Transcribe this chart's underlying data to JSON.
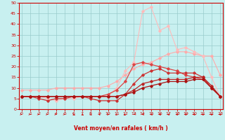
{
  "x": [
    0,
    1,
    2,
    3,
    4,
    5,
    6,
    7,
    8,
    9,
    10,
    11,
    12,
    13,
    14,
    15,
    16,
    17,
    18,
    19,
    20,
    21,
    22,
    23
  ],
  "lines": [
    {
      "y": [
        9,
        9,
        9,
        9,
        10,
        10,
        10,
        10,
        10,
        10,
        11,
        13,
        16,
        19,
        21,
        22,
        24,
        26,
        27,
        27,
        26,
        25,
        25,
        16
      ],
      "color": "#ffaaaa",
      "lw": 0.8,
      "marker": "D",
      "ms": 1.8
    },
    {
      "y": [
        6,
        6,
        6,
        5,
        4,
        5,
        5,
        6,
        6,
        6,
        6,
        10,
        18,
        22,
        46,
        48,
        37,
        39,
        28,
        29,
        27,
        25,
        15,
        6
      ],
      "color": "#ffbbbb",
      "lw": 0.8,
      "marker": "D",
      "ms": 1.8
    },
    {
      "y": [
        6,
        6,
        6,
        6,
        6,
        6,
        6,
        6,
        6,
        6,
        7,
        9,
        13,
        21,
        22,
        21,
        20,
        19,
        18,
        16,
        15,
        14,
        10,
        6
      ],
      "color": "#dd4444",
      "lw": 0.9,
      "marker": "D",
      "ms": 1.8
    },
    {
      "y": [
        6,
        6,
        5,
        4,
        5,
        5,
        6,
        6,
        5,
        4,
        4,
        4,
        7,
        12,
        16,
        18,
        19,
        17,
        17,
        17,
        17,
        15,
        10,
        6
      ],
      "color": "#cc3333",
      "lw": 0.9,
      "marker": "D",
      "ms": 1.8
    },
    {
      "y": [
        6,
        6,
        6,
        6,
        6,
        6,
        6,
        6,
        6,
        6,
        6,
        6,
        7,
        9,
        12,
        13,
        14,
        14,
        14,
        14,
        15,
        15,
        11,
        6
      ],
      "color": "#bb2222",
      "lw": 0.9,
      "marker": "D",
      "ms": 1.8
    },
    {
      "y": [
        6,
        6,
        6,
        6,
        6,
        6,
        6,
        6,
        6,
        6,
        6,
        6,
        7,
        8,
        10,
        11,
        12,
        13,
        13,
        13,
        14,
        14,
        10,
        6
      ],
      "color": "#aa1111",
      "lw": 0.9,
      "marker": "D",
      "ms": 1.8
    }
  ],
  "xlim": [
    -0.3,
    23.3
  ],
  "ylim": [
    0,
    50
  ],
  "yticks": [
    0,
    5,
    10,
    15,
    20,
    25,
    30,
    35,
    40,
    45,
    50
  ],
  "xticks": [
    0,
    1,
    2,
    3,
    4,
    5,
    6,
    7,
    8,
    9,
    10,
    11,
    12,
    13,
    14,
    15,
    16,
    17,
    18,
    19,
    20,
    21,
    22,
    23
  ],
  "xlabel": "Vent moyen/en rafales ( km/h )",
  "bg_color": "#c8f0f0",
  "grid_color": "#99cccc",
  "label_color": "#cc0000",
  "tick_color": "#cc0000",
  "arrow_color": "#cc0000",
  "spine_color": "#cc0000"
}
